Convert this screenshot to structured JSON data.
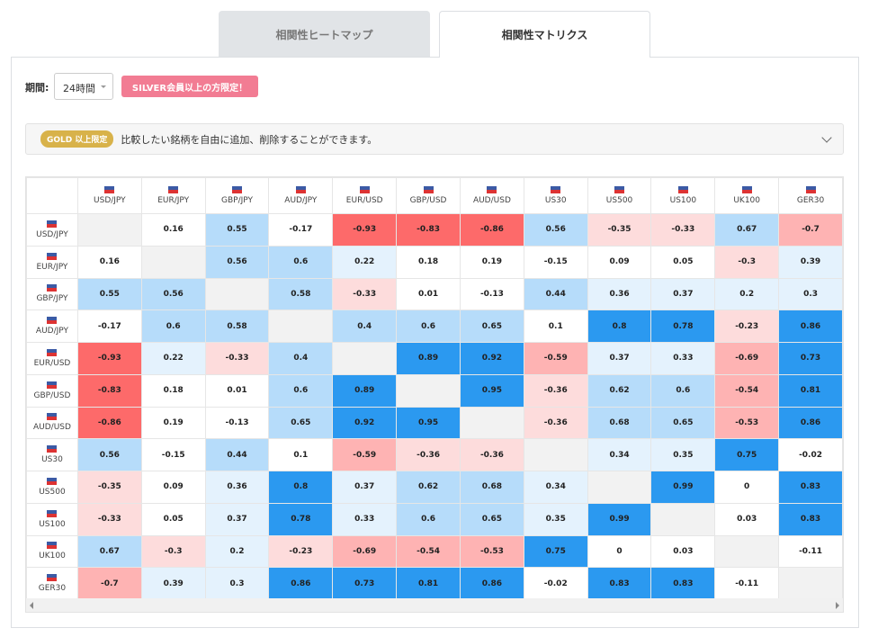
{
  "tabs": [
    "相関性ヒートマップ",
    "相関性マトリクス"
  ],
  "period": {
    "label": "期間:",
    "value": "24時間"
  },
  "badge": "SILVER会員以上の方限定！",
  "notice": {
    "tag": "GOLD 以上限定",
    "text": "比較したい銘柄を自由に追加、削除することができます。"
  },
  "table": {
    "symbols": [
      "USD/JPY",
      "EUR/JPY",
      "GBP/JPY",
      "AUD/JPY",
      "EUR/USD",
      "GBP/USD",
      "AUD/USD",
      "US30",
      "US500",
      "US100",
      "UK100",
      "GER30"
    ],
    "matrix": [
      [
        null,
        0.16,
        0.55,
        -0.17,
        -0.93,
        -0.83,
        -0.86,
        0.56,
        -0.35,
        -0.33,
        0.67,
        -0.7
      ],
      [
        0.16,
        null,
        0.56,
        0.6,
        0.22,
        0.18,
        0.19,
        -0.15,
        0.09,
        0.05,
        -0.3,
        0.39
      ],
      [
        0.55,
        0.56,
        null,
        0.58,
        -0.33,
        0.01,
        -0.13,
        0.44,
        0.36,
        0.37,
        0.2,
        0.3
      ],
      [
        -0.17,
        0.6,
        0.58,
        null,
        0.4,
        0.6,
        0.65,
        0.1,
        0.8,
        0.78,
        -0.23,
        0.86
      ],
      [
        -0.93,
        0.22,
        -0.33,
        0.4,
        null,
        0.89,
        0.92,
        -0.59,
        0.37,
        0.33,
        -0.69,
        0.73
      ],
      [
        -0.83,
        0.18,
        0.01,
        0.6,
        0.89,
        null,
        0.95,
        -0.36,
        0.62,
        0.6,
        -0.54,
        0.81
      ],
      [
        -0.86,
        0.19,
        -0.13,
        0.65,
        0.92,
        0.95,
        null,
        -0.36,
        0.68,
        0.65,
        -0.53,
        0.86
      ],
      [
        0.56,
        -0.15,
        0.44,
        0.1,
        -0.59,
        -0.36,
        -0.36,
        null,
        0.34,
        0.35,
        0.75,
        -0.02
      ],
      [
        -0.35,
        0.09,
        0.36,
        0.8,
        0.37,
        0.62,
        0.68,
        0.34,
        null,
        0.99,
        0,
        0.83
      ],
      [
        -0.33,
        0.05,
        0.37,
        0.78,
        0.33,
        0.6,
        0.65,
        0.35,
        0.99,
        null,
        0.03,
        0.83
      ],
      [
        0.67,
        -0.3,
        0.2,
        -0.23,
        -0.69,
        -0.54,
        -0.53,
        0.75,
        0,
        0.03,
        null,
        -0.11
      ],
      [
        -0.7,
        0.39,
        0.3,
        0.86,
        0.73,
        0.81,
        0.86,
        -0.02,
        0.83,
        0.83,
        -0.11,
        null
      ]
    ]
  }
}
